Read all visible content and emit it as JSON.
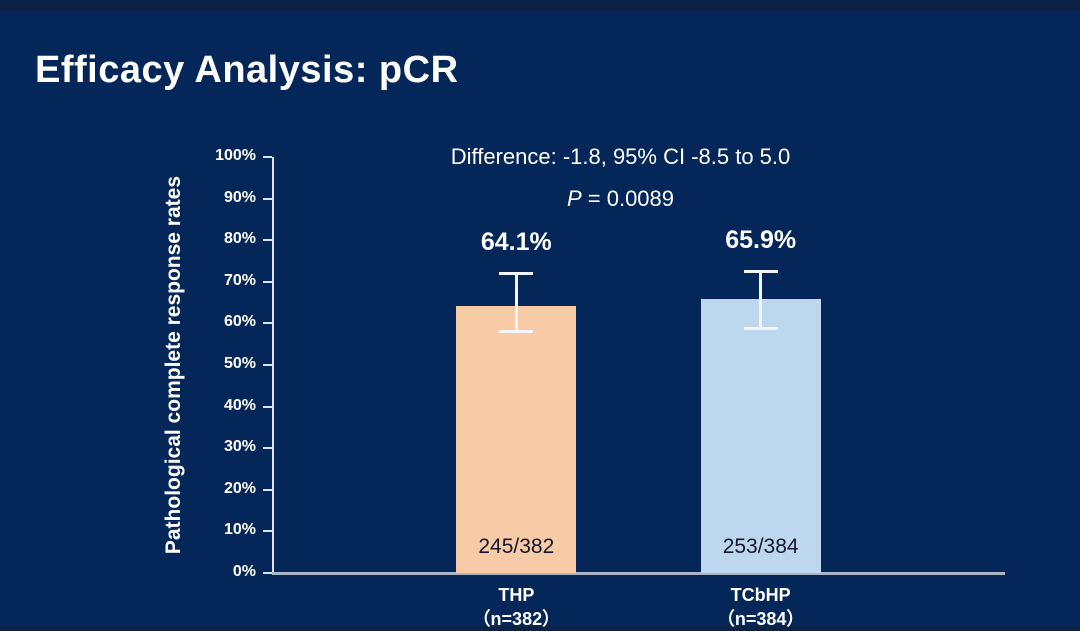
{
  "title": "Efficacy Analysis: pCR",
  "chart_data": {
    "type": "bar",
    "title": "Efficacy Analysis: pCR",
    "xlabel": "",
    "ylabel": "Pathological complete response rates",
    "ylim": [
      0,
      100
    ],
    "grid": false,
    "legend": false,
    "yticks": [
      {
        "value": 0,
        "label": "0%"
      },
      {
        "value": 10,
        "label": "10%"
      },
      {
        "value": 20,
        "label": "20%"
      },
      {
        "value": 30,
        "label": "30%"
      },
      {
        "value": 40,
        "label": "40%"
      },
      {
        "value": 50,
        "label": "50%"
      },
      {
        "value": 60,
        "label": "60%"
      },
      {
        "value": 70,
        "label": "70%"
      },
      {
        "value": 80,
        "label": "80%"
      },
      {
        "value": 90,
        "label": "90%"
      },
      {
        "value": 100,
        "label": "100%"
      }
    ],
    "categories": [
      "THP",
      "TCbHP"
    ],
    "bars": [
      {
        "category": "THP",
        "n_label": "（n=382）",
        "value": 64.1,
        "value_label": "64.1%",
        "count_label": "245/382",
        "ci_low": 57.9,
        "ci_high": 72.1,
        "color": "#f7cba6"
      },
      {
        "category": "TCbHP",
        "n_label": "（n=384）",
        "value": 65.9,
        "value_label": "65.9%",
        "count_label": "253/384",
        "ci_low": 58.7,
        "ci_high": 72.6,
        "color": "#bdd7ee"
      }
    ],
    "annotations": {
      "difference_line": "Difference: -1.8, 95% CI -8.5 to 5.0",
      "p_italic": "P",
      "p_text": " = 0.0089"
    },
    "colors": {
      "background": "#042658",
      "strip": "#0b2244",
      "axis": "#dde4ee",
      "baseline": "#a9b6c8",
      "error_bar": "#f2f5f9",
      "text": "#ffffff",
      "count_text": "#15152b"
    }
  }
}
